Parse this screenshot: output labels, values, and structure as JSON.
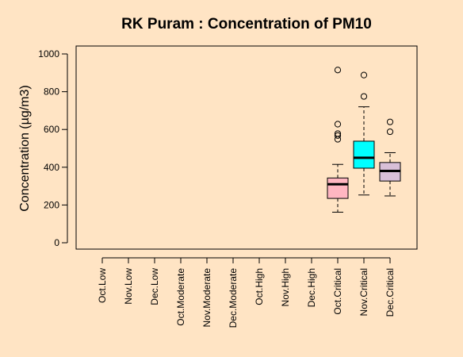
{
  "chart_data": {
    "type": "boxplot",
    "title": "RK Puram : Concentration of PM10",
    "xlabel": "",
    "ylabel": "Concentration (µg/m3)",
    "ylim": [
      0,
      1000
    ],
    "yticks": [
      0,
      200,
      400,
      600,
      800,
      1000
    ],
    "categories": [
      "Oct.Low",
      "Nov.Low",
      "Dec.Low",
      "Oct.Moderate",
      "Nov.Moderate",
      "Dec.Moderate",
      "Oct.High",
      "Nov.High",
      "Dec.High",
      "Oct.Critical",
      "Nov.Critical",
      "Dec.Critical"
    ],
    "boxes": [
      {
        "category": "Oct.Critical",
        "whisker_low": 162,
        "q1": 235,
        "median": 310,
        "q3": 343,
        "whisker_high": 415,
        "outliers": [
          548,
          568,
          578,
          628,
          915
        ],
        "color": "#FFB6C1"
      },
      {
        "category": "Nov.Critical",
        "whisker_low": 253,
        "q1": 395,
        "median": 450,
        "q3": 538,
        "whisker_high": 720,
        "outliers": [
          775,
          888
        ],
        "color": "#00FFFF"
      },
      {
        "category": "Dec.Critical",
        "whisker_low": 248,
        "q1": 327,
        "median": 380,
        "q3": 425,
        "whisker_high": 477,
        "outliers": [
          588,
          640
        ],
        "color": "#D8BFD8"
      }
    ],
    "grid": false,
    "background": "#FFE4C4"
  }
}
